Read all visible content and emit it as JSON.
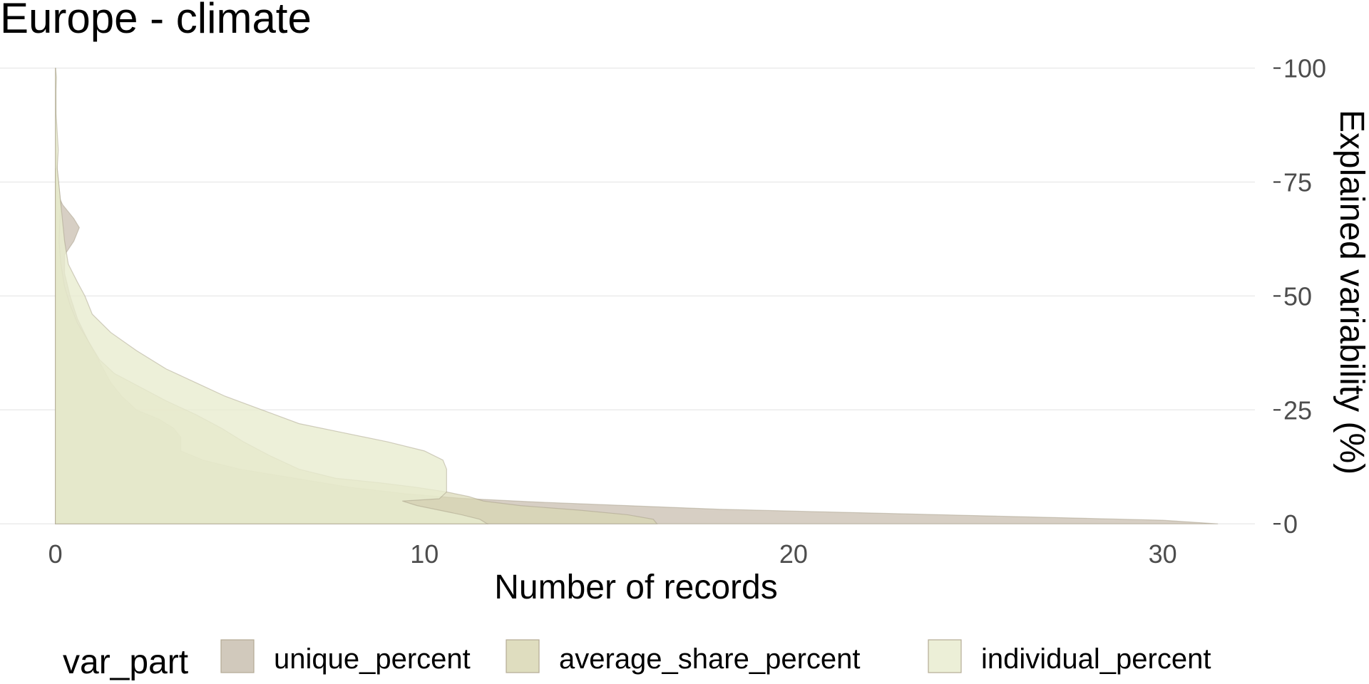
{
  "chart_data": {
    "type": "area",
    "orientation": "horizontal-density",
    "title": "Europe - climate",
    "xlabel": "Number of records",
    "ylabel": "Explained variability (%)",
    "xlim": [
      -1.5,
      32.5
    ],
    "ylim": [
      -2,
      104
    ],
    "x_ticks": [
      0,
      10,
      20,
      30
    ],
    "y_ticks": [
      0,
      25,
      50,
      75,
      100
    ],
    "y_axis_position": "right",
    "grid": true,
    "legend": {
      "title": "var_part",
      "position": "bottom",
      "entries": [
        {
          "label": "unique_percent",
          "color": "#c9bfb0"
        },
        {
          "label": "average_share_percent",
          "color": "#d9d7b4"
        },
        {
          "label": "individual_percent",
          "color": "#e9ecd0"
        }
      ]
    },
    "series": [
      {
        "name": "unique_percent",
        "fill": "#c9bfb0",
        "opacity": 0.75,
        "points": [
          [
            31.5,
            0
          ],
          [
            30,
            0.8
          ],
          [
            26,
            1.6
          ],
          [
            22,
            2.4
          ],
          [
            18,
            3.2
          ],
          [
            15.5,
            4
          ],
          [
            13,
            4.8
          ],
          [
            11,
            5.6
          ],
          [
            9.5,
            6.6
          ],
          [
            8,
            8
          ],
          [
            6.5,
            10
          ],
          [
            5,
            12
          ],
          [
            4,
            14
          ],
          [
            3.4,
            16
          ],
          [
            3.4,
            17.5
          ],
          [
            3.4,
            19
          ],
          [
            3.2,
            21
          ],
          [
            2.8,
            23
          ],
          [
            2.2,
            25
          ],
          [
            1.8,
            28
          ],
          [
            1.5,
            31
          ],
          [
            1.3,
            34
          ],
          [
            1.1,
            37
          ],
          [
            0.9,
            40
          ],
          [
            0.6,
            45
          ],
          [
            0.4,
            50
          ],
          [
            0.25,
            55
          ],
          [
            0.25,
            59
          ],
          [
            0.5,
            62
          ],
          [
            0.65,
            65
          ],
          [
            0.5,
            67
          ],
          [
            0.2,
            70
          ],
          [
            0.08,
            72
          ],
          [
            0.03,
            75
          ],
          [
            0,
            78
          ]
        ]
      },
      {
        "name": "average_share_percent",
        "fill": "#d9d7b4",
        "opacity": 0.7,
        "points": [
          [
            16.3,
            0
          ],
          [
            16.2,
            1
          ],
          [
            15.5,
            2
          ],
          [
            14.2,
            3
          ],
          [
            12.6,
            4
          ],
          [
            11.6,
            5
          ],
          [
            11.2,
            6
          ],
          [
            10.6,
            7
          ],
          [
            9.8,
            8
          ],
          [
            8.8,
            9
          ],
          [
            7.6,
            10
          ],
          [
            6.6,
            12
          ],
          [
            5.8,
            15
          ],
          [
            5.1,
            18
          ],
          [
            4.5,
            21
          ],
          [
            3.8,
            24
          ],
          [
            3,
            27
          ],
          [
            2.3,
            30
          ],
          [
            1.6,
            33
          ],
          [
            1.2,
            36
          ],
          [
            0.9,
            40
          ],
          [
            0.6,
            44
          ],
          [
            0.4,
            48
          ],
          [
            0.25,
            52
          ],
          [
            0.15,
            57
          ],
          [
            0.1,
            62
          ],
          [
            0.12,
            66
          ],
          [
            0.15,
            70
          ],
          [
            0.1,
            74
          ],
          [
            0.05,
            78
          ],
          [
            0.02,
            85
          ],
          [
            0,
            100
          ]
        ]
      },
      {
        "name": "individual_percent",
        "fill": "#e9ecd0",
        "opacity": 0.8,
        "points": [
          [
            11.7,
            0
          ],
          [
            11.5,
            1
          ],
          [
            11,
            2
          ],
          [
            10.4,
            3
          ],
          [
            9.8,
            4
          ],
          [
            9.4,
            5
          ],
          [
            10.4,
            5.5
          ],
          [
            10.6,
            7
          ],
          [
            10.6,
            12
          ],
          [
            10.5,
            14
          ],
          [
            10,
            16
          ],
          [
            9,
            18
          ],
          [
            7.8,
            20
          ],
          [
            6.6,
            22
          ],
          [
            5.6,
            25
          ],
          [
            4.6,
            28
          ],
          [
            3.8,
            31
          ],
          [
            3,
            34
          ],
          [
            2.2,
            38
          ],
          [
            1.5,
            42
          ],
          [
            1,
            46
          ],
          [
            0.8,
            50
          ],
          [
            0.6,
            53
          ],
          [
            0.35,
            57
          ],
          [
            0.25,
            62
          ],
          [
            0.2,
            66
          ],
          [
            0.15,
            70
          ],
          [
            0.1,
            74
          ],
          [
            0.05,
            78
          ],
          [
            0.08,
            82
          ],
          [
            0.05,
            86
          ],
          [
            0.02,
            90
          ],
          [
            0.02,
            95
          ],
          [
            0.03,
            98
          ],
          [
            0.01,
            100
          ]
        ]
      }
    ]
  }
}
